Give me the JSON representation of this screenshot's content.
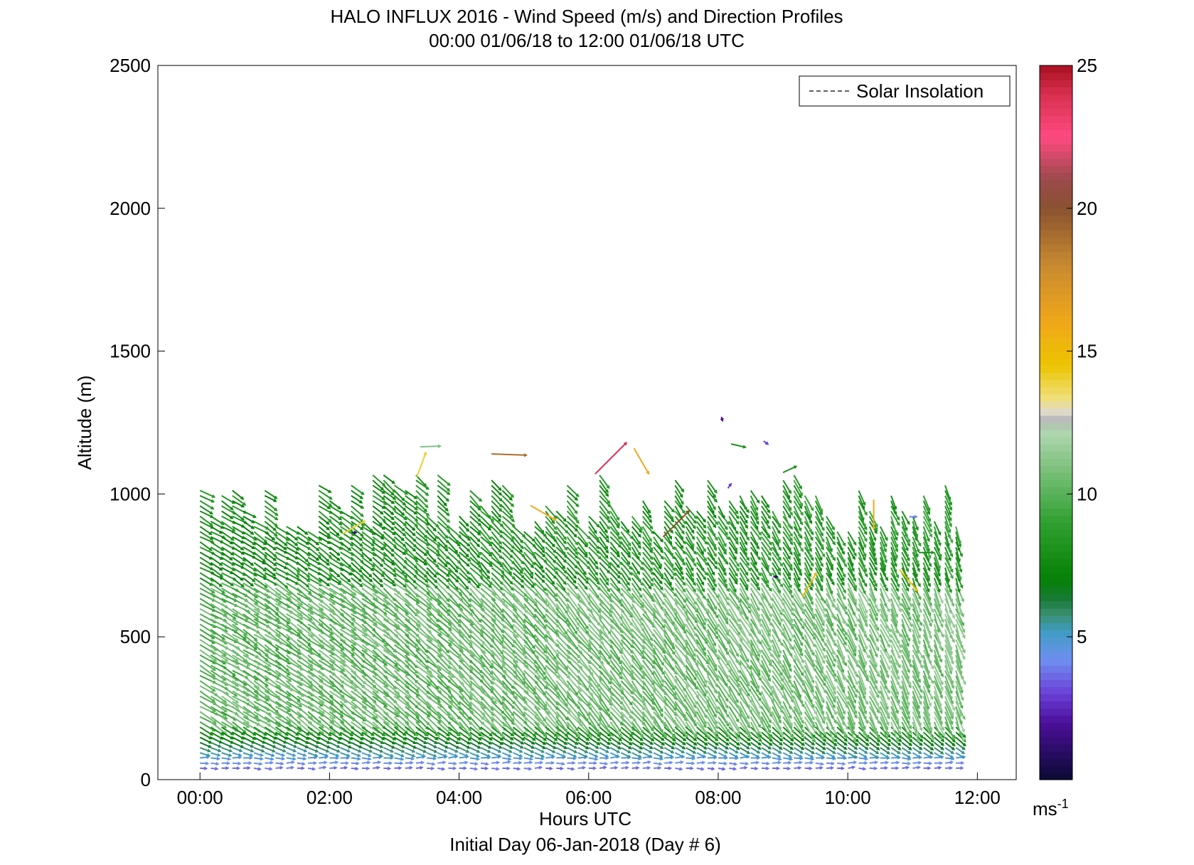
{
  "chart_data": {
    "type": "vector_field",
    "title": "HALO INFLUX 2016 - Wind Speed (m/s) and Direction Profiles",
    "subtitle": "00:00 01/06/18 to 12:00 01/06/18  UTC",
    "xlabel": "Hours UTC",
    "xlabel2": "Initial Day 06-Jan-2018 (Day # 6)",
    "ylabel": "Altitude (m)",
    "x_ticks": [
      "00:00",
      "02:00",
      "04:00",
      "06:00",
      "08:00",
      "10:00",
      "12:00"
    ],
    "x_tick_hours": [
      0,
      2,
      4,
      6,
      8,
      10,
      12
    ],
    "xlim_hours": [
      -0.65,
      12.6
    ],
    "y_ticks": [
      "0",
      "500",
      "1000",
      "1500",
      "2000",
      "2500"
    ],
    "y_tick_values": [
      0,
      500,
      1000,
      1500,
      2000,
      2500
    ],
    "ylim": [
      0,
      2500
    ],
    "legend": {
      "entries": [
        "Solar Insolation"
      ],
      "placement": "top-right",
      "line_style": "dashed"
    },
    "colorbar": {
      "label": "ms",
      "label_exponent": "-1",
      "range": [
        0,
        25
      ],
      "ticks": [
        "5",
        "10",
        "15",
        "20",
        "25"
      ],
      "tick_values": [
        5,
        10,
        15,
        20,
        25
      ],
      "stops": [
        {
          "v": 0,
          "c": "#0a0a33"
        },
        {
          "v": 2.0,
          "c": "#4b0f9a"
        },
        {
          "v": 3.0,
          "c": "#6a3fd6"
        },
        {
          "v": 4.2,
          "c": "#6f8ff0"
        },
        {
          "v": 5.2,
          "c": "#3f9cc4"
        },
        {
          "v": 5.8,
          "c": "#3a8f6e"
        },
        {
          "v": 6.3,
          "c": "#1a7a3a"
        },
        {
          "v": 7.0,
          "c": "#058005"
        },
        {
          "v": 9.0,
          "c": "#30a030"
        },
        {
          "v": 12.3,
          "c": "#b5d9b5"
        },
        {
          "v": 12.5,
          "c": "#a8a8a8"
        },
        {
          "v": 12.8,
          "c": "#d8d8d8"
        },
        {
          "v": 13.3,
          "c": "#f0e080"
        },
        {
          "v": 14.5,
          "c": "#ecc400"
        },
        {
          "v": 16.0,
          "c": "#f0a81a"
        },
        {
          "v": 18.0,
          "c": "#c88a30"
        },
        {
          "v": 20.0,
          "c": "#8a5230"
        },
        {
          "v": 21.0,
          "c": "#9a4a4a"
        },
        {
          "v": 22.5,
          "c": "#ff4a80"
        },
        {
          "v": 24.0,
          "c": "#d83050"
        },
        {
          "v": 25.0,
          "c": "#a81020"
        }
      ]
    },
    "profiles": {
      "start_hour": 0.0,
      "end_hour": 11.75,
      "step_hours": 0.1667,
      "bottom_altitude_m": 40,
      "altitude_step_m": 18,
      "top_altitude_range_m": [
        880,
        1090
      ],
      "surface_speed_ms": 3.5,
      "boundary_layer_speed_ms": [
        9,
        11
      ],
      "boundary_layer_direction_deg": [
        300,
        340
      ]
    },
    "isolated_vectors": [
      {
        "hour": 3.4,
        "alt": 1165,
        "speed": 11,
        "dir": 268
      },
      {
        "hour": 4.5,
        "alt": 1140,
        "speed": 19,
        "dir": 272
      },
      {
        "hour": 6.7,
        "alt": 1160,
        "speed": 16,
        "dir": 330
      },
      {
        "hour": 6.1,
        "alt": 1070,
        "speed": 24,
        "dir": 225
      },
      {
        "hour": 8.05,
        "alt": 1270,
        "speed": 2,
        "dir": 345
      },
      {
        "hour": 8.2,
        "alt": 1175,
        "speed": 8,
        "dir": 283
      },
      {
        "hour": 8.7,
        "alt": 1185,
        "speed": 3,
        "dir": 305
      },
      {
        "hour": 2.2,
        "alt": 860,
        "speed": 14,
        "dir": 240
      },
      {
        "hour": 2.35,
        "alt": 865,
        "speed": 1.5,
        "dir": 270
      },
      {
        "hour": 3.35,
        "alt": 1060,
        "speed": 14,
        "dir": 200
      },
      {
        "hour": 10.4,
        "alt": 980,
        "speed": 16,
        "dir": 0
      },
      {
        "hour": 10.8,
        "alt": 735,
        "speed": 15,
        "dir": 320
      },
      {
        "hour": 9.3,
        "alt": 640,
        "speed": 15,
        "dir": 210
      },
      {
        "hour": 7.15,
        "alt": 850,
        "speed": 20,
        "dir": 225
      },
      {
        "hour": 5.1,
        "alt": 960,
        "speed": 16,
        "dir": 300
      },
      {
        "hour": 8.85,
        "alt": 710,
        "speed": 1,
        "dir": 270
      },
      {
        "hour": 11.1,
        "alt": 795,
        "speed": 8,
        "dir": 270
      },
      {
        "hour": 10.95,
        "alt": 920,
        "speed": 4,
        "dir": 270
      },
      {
        "hour": 9.0,
        "alt": 1075,
        "speed": 8,
        "dir": 245
      },
      {
        "hour": 8.15,
        "alt": 1020,
        "speed": 3,
        "dir": 215
      }
    ]
  }
}
